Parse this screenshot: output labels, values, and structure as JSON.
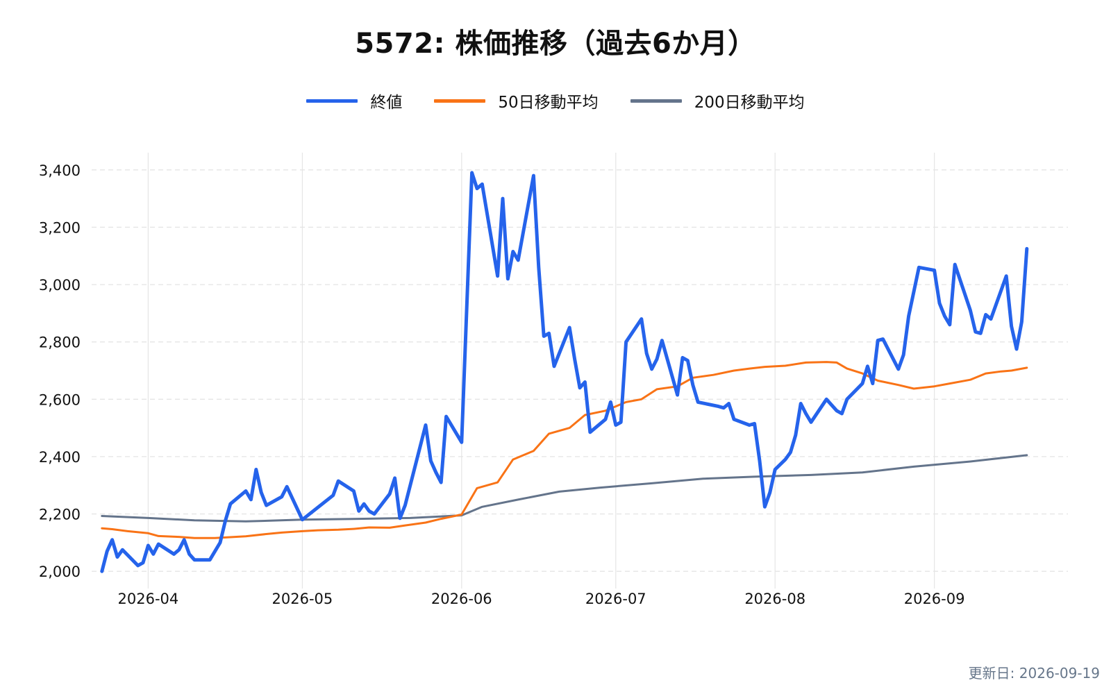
{
  "title": "5572: 株価推移（過去6か月）",
  "footer": "更新日: 2026-09-19",
  "colors": {
    "close": "#2563eb",
    "ma50": "#f97316",
    "ma200": "#64748b",
    "grid": "#e5e5e5"
  },
  "legend": [
    {
      "label": "終値",
      "color": "#2563eb"
    },
    {
      "label": "50日移動平均",
      "color": "#f97316"
    },
    {
      "label": "200日移動平均",
      "color": "#64748b"
    }
  ],
  "chart_data": {
    "type": "line",
    "title": "5572: 株価推移（過去6か月）",
    "xlabel": "",
    "ylabel": "",
    "xlim": [
      "2026-03-21",
      "2026-09-27"
    ],
    "ylim": [
      1940,
      3460
    ],
    "yticks": [
      2000,
      2200,
      2400,
      2600,
      2800,
      3000,
      3200,
      3400
    ],
    "ytick_labels": [
      "2,000",
      "2,200",
      "2,400",
      "2,600",
      "2,800",
      "3,000",
      "3,200",
      "3,400"
    ],
    "xticks": [
      "2026-04-01",
      "2026-05-01",
      "2026-06-01",
      "2026-07-01",
      "2026-08-01",
      "2026-09-01"
    ],
    "xtick_labels": [
      "2026-04",
      "2026-05",
      "2026-06",
      "2026-07",
      "2026-08",
      "2026-09"
    ],
    "grid": "on",
    "legend_position": "top-center",
    "series": [
      {
        "name": "終値",
        "points": [
          [
            "2026-03-23",
            2000
          ],
          [
            "2026-03-24",
            2070
          ],
          [
            "2026-03-25",
            2110
          ],
          [
            "2026-03-26",
            2050
          ],
          [
            "2026-03-27",
            2075
          ],
          [
            "2026-03-30",
            2020
          ],
          [
            "2026-03-31",
            2030
          ],
          [
            "2026-04-01",
            2090
          ],
          [
            "2026-04-02",
            2060
          ],
          [
            "2026-04-03",
            2095
          ],
          [
            "2026-04-06",
            2060
          ],
          [
            "2026-04-07",
            2075
          ],
          [
            "2026-04-08",
            2110
          ],
          [
            "2026-04-09",
            2060
          ],
          [
            "2026-04-10",
            2040
          ],
          [
            "2026-04-13",
            2040
          ],
          [
            "2026-04-15",
            2100
          ],
          [
            "2026-04-16",
            2175
          ],
          [
            "2026-04-17",
            2235
          ],
          [
            "2026-04-20",
            2280
          ],
          [
            "2026-04-21",
            2250
          ],
          [
            "2026-04-22",
            2355
          ],
          [
            "2026-04-23",
            2275
          ],
          [
            "2026-04-24",
            2230
          ],
          [
            "2026-04-27",
            2260
          ],
          [
            "2026-04-28",
            2295
          ],
          [
            "2026-05-01",
            2180
          ],
          [
            "2026-05-07",
            2265
          ],
          [
            "2026-05-08",
            2315
          ],
          [
            "2026-05-11",
            2280
          ],
          [
            "2026-05-12",
            2210
          ],
          [
            "2026-05-13",
            2235
          ],
          [
            "2026-05-14",
            2210
          ],
          [
            "2026-05-15",
            2200
          ],
          [
            "2026-05-18",
            2270
          ],
          [
            "2026-05-19",
            2325
          ],
          [
            "2026-05-20",
            2185
          ],
          [
            "2026-05-21",
            2230
          ],
          [
            "2026-05-25",
            2510
          ],
          [
            "2026-05-26",
            2385
          ],
          [
            "2026-05-27",
            2345
          ],
          [
            "2026-05-28",
            2310
          ],
          [
            "2026-05-29",
            2540
          ],
          [
            "2026-06-01",
            2450
          ],
          [
            "2026-06-03",
            3390
          ],
          [
            "2026-06-04",
            3335
          ],
          [
            "2026-06-05",
            3350
          ],
          [
            "2026-06-08",
            3030
          ],
          [
            "2026-06-09",
            3300
          ],
          [
            "2026-06-10",
            3020
          ],
          [
            "2026-06-11",
            3115
          ],
          [
            "2026-06-12",
            3085
          ],
          [
            "2026-06-15",
            3380
          ],
          [
            "2026-06-16",
            3060
          ],
          [
            "2026-06-17",
            2820
          ],
          [
            "2026-06-18",
            2830
          ],
          [
            "2026-06-19",
            2715
          ],
          [
            "2026-06-22",
            2850
          ],
          [
            "2026-06-23",
            2740
          ],
          [
            "2026-06-24",
            2640
          ],
          [
            "2026-06-25",
            2660
          ],
          [
            "2026-06-26",
            2485
          ],
          [
            "2026-06-29",
            2530
          ],
          [
            "2026-06-30",
            2590
          ],
          [
            "2026-07-01",
            2510
          ],
          [
            "2026-07-02",
            2520
          ],
          [
            "2026-07-03",
            2800
          ],
          [
            "2026-07-06",
            2880
          ],
          [
            "2026-07-07",
            2760
          ],
          [
            "2026-07-08",
            2705
          ],
          [
            "2026-07-09",
            2740
          ],
          [
            "2026-07-10",
            2805
          ],
          [
            "2026-07-13",
            2615
          ],
          [
            "2026-07-14",
            2745
          ],
          [
            "2026-07-15",
            2735
          ],
          [
            "2026-07-16",
            2650
          ],
          [
            "2026-07-17",
            2590
          ],
          [
            "2026-07-21",
            2575
          ],
          [
            "2026-07-22",
            2570
          ],
          [
            "2026-07-23",
            2585
          ],
          [
            "2026-07-24",
            2530
          ],
          [
            "2026-07-27",
            2510
          ],
          [
            "2026-07-28",
            2515
          ],
          [
            "2026-07-29",
            2385
          ],
          [
            "2026-07-30",
            2225
          ],
          [
            "2026-07-31",
            2275
          ],
          [
            "2026-08-01",
            2355
          ],
          [
            "2026-08-03",
            2390
          ],
          [
            "2026-08-04",
            2415
          ],
          [
            "2026-08-05",
            2475
          ],
          [
            "2026-08-06",
            2585
          ],
          [
            "2026-08-07",
            2550
          ],
          [
            "2026-08-08",
            2520
          ],
          [
            "2026-08-11",
            2600
          ],
          [
            "2026-08-12",
            2580
          ],
          [
            "2026-08-13",
            2560
          ],
          [
            "2026-08-14",
            2550
          ],
          [
            "2026-08-15",
            2600
          ],
          [
            "2026-08-18",
            2655
          ],
          [
            "2026-08-19",
            2715
          ],
          [
            "2026-08-20",
            2655
          ],
          [
            "2026-08-21",
            2805
          ],
          [
            "2026-08-22",
            2810
          ],
          [
            "2026-08-25",
            2705
          ],
          [
            "2026-08-26",
            2755
          ],
          [
            "2026-08-27",
            2890
          ],
          [
            "2026-08-29",
            3060
          ],
          [
            "2026-09-01",
            3050
          ],
          [
            "2026-09-02",
            2935
          ],
          [
            "2026-09-03",
            2890
          ],
          [
            "2026-09-04",
            2860
          ],
          [
            "2026-09-05",
            3070
          ],
          [
            "2026-09-08",
            2910
          ],
          [
            "2026-09-09",
            2835
          ],
          [
            "2026-09-10",
            2830
          ],
          [
            "2026-09-11",
            2895
          ],
          [
            "2026-09-12",
            2880
          ],
          [
            "2026-09-15",
            3030
          ],
          [
            "2026-09-16",
            2855
          ],
          [
            "2026-09-17",
            2775
          ],
          [
            "2026-09-18",
            2870
          ],
          [
            "2026-09-19",
            3125
          ]
        ]
      },
      {
        "name": "50日移動平均",
        "points": [
          [
            "2026-03-23",
            2150
          ],
          [
            "2026-03-25",
            2147
          ],
          [
            "2026-03-28",
            2140
          ],
          [
            "2026-04-01",
            2133
          ],
          [
            "2026-04-03",
            2123
          ],
          [
            "2026-04-07",
            2120
          ],
          [
            "2026-04-10",
            2116
          ],
          [
            "2026-04-14",
            2116
          ],
          [
            "2026-04-17",
            2119
          ],
          [
            "2026-04-20",
            2122
          ],
          [
            "2026-04-24",
            2130
          ],
          [
            "2026-04-27",
            2135
          ],
          [
            "2026-05-01",
            2140
          ],
          [
            "2026-05-04",
            2143
          ],
          [
            "2026-05-08",
            2145
          ],
          [
            "2026-05-11",
            2148
          ],
          [
            "2026-05-14",
            2153
          ],
          [
            "2026-05-18",
            2152
          ],
          [
            "2026-05-21",
            2160
          ],
          [
            "2026-05-25",
            2170
          ],
          [
            "2026-05-28",
            2183
          ],
          [
            "2026-06-01",
            2198
          ],
          [
            "2026-06-04",
            2290
          ],
          [
            "2026-06-08",
            2310
          ],
          [
            "2026-06-11",
            2390
          ],
          [
            "2026-06-15",
            2420
          ],
          [
            "2026-06-18",
            2480
          ],
          [
            "2026-06-22",
            2500
          ],
          [
            "2026-06-25",
            2545
          ],
          [
            "2026-06-29",
            2560
          ],
          [
            "2026-07-03",
            2590
          ],
          [
            "2026-07-06",
            2600
          ],
          [
            "2026-07-09",
            2635
          ],
          [
            "2026-07-13",
            2645
          ],
          [
            "2026-07-16",
            2675
          ],
          [
            "2026-07-20",
            2685
          ],
          [
            "2026-07-24",
            2700
          ],
          [
            "2026-07-27",
            2707
          ],
          [
            "2026-07-30",
            2713
          ],
          [
            "2026-08-03",
            2717
          ],
          [
            "2026-08-07",
            2728
          ],
          [
            "2026-08-11",
            2730
          ],
          [
            "2026-08-13",
            2728
          ],
          [
            "2026-08-15",
            2707
          ],
          [
            "2026-08-18",
            2690
          ],
          [
            "2026-08-21",
            2665
          ],
          [
            "2026-08-25",
            2650
          ],
          [
            "2026-08-28",
            2637
          ],
          [
            "2026-09-01",
            2645
          ],
          [
            "2026-09-04",
            2655
          ],
          [
            "2026-09-08",
            2668
          ],
          [
            "2026-09-11",
            2690
          ],
          [
            "2026-09-14",
            2697
          ],
          [
            "2026-09-16",
            2700
          ],
          [
            "2026-09-19",
            2710
          ]
        ]
      },
      {
        "name": "200日移動平均",
        "points": [
          [
            "2026-03-23",
            2193
          ],
          [
            "2026-04-01",
            2186
          ],
          [
            "2026-04-10",
            2178
          ],
          [
            "2026-04-20",
            2174
          ],
          [
            "2026-05-01",
            2180
          ],
          [
            "2026-05-12",
            2183
          ],
          [
            "2026-05-22",
            2186
          ],
          [
            "2026-06-01",
            2195
          ],
          [
            "2026-06-05",
            2225
          ],
          [
            "2026-06-12",
            2250
          ],
          [
            "2026-06-20",
            2278
          ],
          [
            "2026-06-28",
            2292
          ],
          [
            "2026-07-08",
            2307
          ],
          [
            "2026-07-18",
            2323
          ],
          [
            "2026-07-28",
            2330
          ],
          [
            "2026-08-08",
            2336
          ],
          [
            "2026-08-18",
            2345
          ],
          [
            "2026-08-28",
            2365
          ],
          [
            "2026-09-08",
            2383
          ],
          [
            "2026-09-19",
            2405
          ]
        ]
      }
    ]
  }
}
